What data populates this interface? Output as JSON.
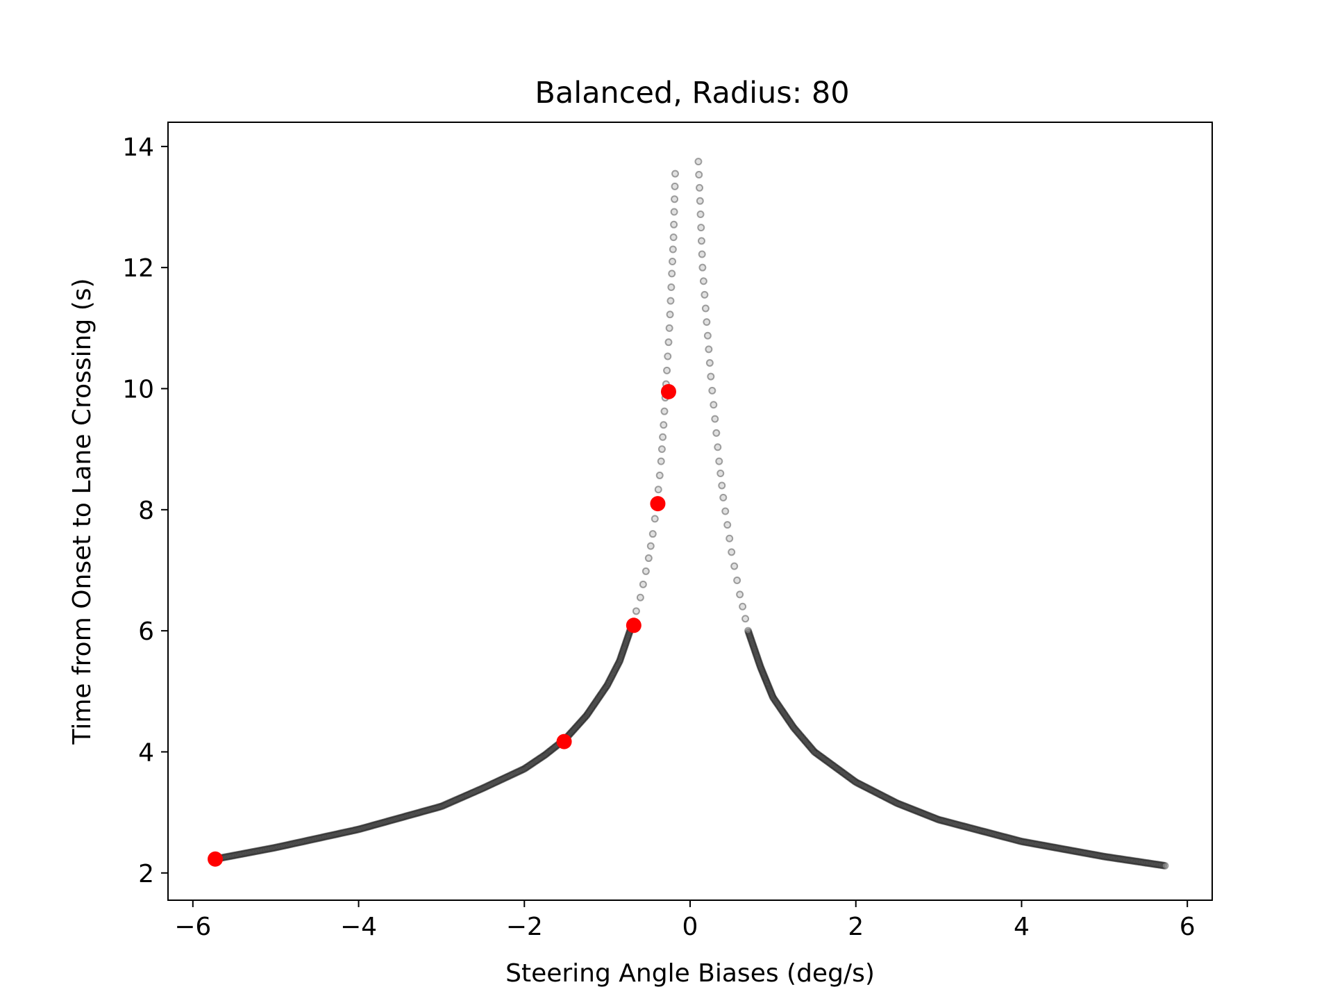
{
  "chart_data": {
    "type": "scatter",
    "title": "Balanced, Radius: 80",
    "xlabel": "Steering Angle Biases (deg/s)",
    "ylabel": "Time from Onset to Lane Crossing (s)",
    "xlim": [
      -6.3,
      6.3
    ],
    "ylim": [
      1.55,
      14.4
    ],
    "x_ticks": [
      -6,
      -4,
      -2,
      0,
      2,
      4,
      6
    ],
    "x_tick_labels": [
      "−6",
      "−4",
      "−2",
      "0",
      "2",
      "4",
      "6"
    ],
    "y_ticks": [
      2,
      4,
      6,
      8,
      10,
      12,
      14
    ],
    "y_tick_labels": [
      "2",
      "4",
      "6",
      "8",
      "10",
      "12",
      "14"
    ],
    "grid": false,
    "series": [
      {
        "style": "hollow-gray-dots",
        "color": "#000000",
        "x": [
          -5.73,
          -5.0,
          -4.0,
          -3.0,
          -2.5,
          -2.0,
          -1.75,
          -1.5,
          -1.25,
          -1.0,
          -0.85,
          -0.7,
          -0.6,
          -0.5,
          -0.45,
          -0.4,
          -0.35,
          -0.32,
          -0.28,
          -0.25,
          -0.22,
          -0.2,
          -0.18,
          0.1,
          0.12,
          0.15,
          0.2,
          0.25,
          0.3,
          0.35,
          0.4,
          0.5,
          0.6,
          0.7,
          0.85,
          1.0,
          1.25,
          1.5,
          2.0,
          2.5,
          3.0,
          4.0,
          5.0,
          5.73
        ],
        "y": [
          2.23,
          2.42,
          2.72,
          3.1,
          3.4,
          3.72,
          3.95,
          4.22,
          4.6,
          5.1,
          5.5,
          6.1,
          6.55,
          7.2,
          7.6,
          8.1,
          8.8,
          9.4,
          10.3,
          11.0,
          11.9,
          12.5,
          13.55,
          13.75,
          13.1,
          12.0,
          11.1,
          10.2,
          9.5,
          8.8,
          8.2,
          7.3,
          6.6,
          6.0,
          5.4,
          4.9,
          4.4,
          4.0,
          3.5,
          3.15,
          2.88,
          2.52,
          2.27,
          2.12
        ]
      },
      {
        "style": "red-dots",
        "color": "#ff0000",
        "x": [
          -5.73,
          -1.52,
          -0.68,
          -0.39,
          -0.26
        ],
        "y": [
          2.23,
          4.17,
          6.09,
          8.1,
          9.95
        ]
      }
    ]
  }
}
